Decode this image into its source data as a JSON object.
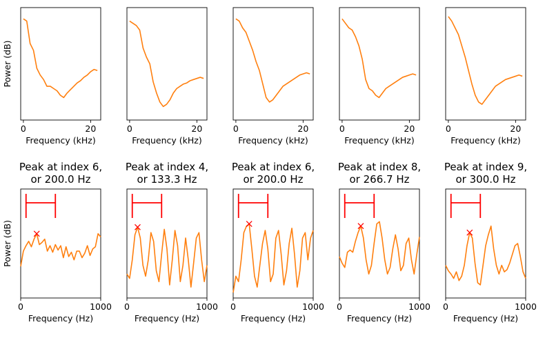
{
  "colors": {
    "line": "#ff7f0e",
    "peak_marker": "#ff0000",
    "bracket": "#ff0000",
    "axes": "#000000",
    "background": "#ffffff"
  },
  "chart_data": [
    {
      "type": "line",
      "row": "top",
      "panels": [
        {
          "title": "",
          "xlabel": "Frequency (kHz)",
          "ylabel": "Power (dB)",
          "xlim": [
            -0.8,
            23
          ],
          "xticks": [
            0,
            20
          ],
          "yticks": [],
          "series": {
            "x": [
              0,
              1,
              2,
              3,
              4,
              5,
              6,
              7,
              8,
              9,
              10,
              11,
              12,
              13,
              14,
              15,
              16,
              17,
              18,
              19,
              20,
              21,
              22
            ],
            "y": [
              0.9,
              0.88,
              0.68,
              0.62,
              0.46,
              0.4,
              0.36,
              0.3,
              0.3,
              0.28,
              0.26,
              0.22,
              0.2,
              0.24,
              0.27,
              0.3,
              0.33,
              0.35,
              0.38,
              0.4,
              0.43,
              0.45,
              0.44
            ]
          }
        },
        {
          "title": "",
          "xlabel": "Frequency (kHz)",
          "ylabel": "",
          "xlim": [
            -0.8,
            23
          ],
          "xticks": [
            0,
            20
          ],
          "yticks": [],
          "series": {
            "x": [
              0,
              1,
              2,
              3,
              4,
              5,
              6,
              7,
              8,
              9,
              10,
              11,
              12,
              13,
              14,
              15,
              16,
              17,
              18,
              19,
              20,
              21,
              22
            ],
            "y": [
              0.88,
              0.86,
              0.84,
              0.8,
              0.64,
              0.56,
              0.5,
              0.34,
              0.24,
              0.16,
              0.12,
              0.14,
              0.18,
              0.24,
              0.28,
              0.3,
              0.32,
              0.33,
              0.35,
              0.36,
              0.37,
              0.38,
              0.37
            ]
          }
        },
        {
          "title": "",
          "xlabel": "Frequency (kHz)",
          "ylabel": "",
          "xlim": [
            -0.8,
            23
          ],
          "xticks": [
            0,
            20
          ],
          "yticks": [],
          "series": {
            "x": [
              0,
              1,
              2,
              3,
              4,
              5,
              6,
              7,
              8,
              9,
              10,
              11,
              12,
              13,
              14,
              15,
              16,
              17,
              18,
              19,
              20,
              21,
              22
            ],
            "y": [
              0.9,
              0.88,
              0.82,
              0.78,
              0.7,
              0.62,
              0.52,
              0.44,
              0.32,
              0.2,
              0.16,
              0.18,
              0.22,
              0.26,
              0.3,
              0.32,
              0.34,
              0.36,
              0.38,
              0.4,
              0.41,
              0.42,
              0.41
            ]
          }
        },
        {
          "title": "",
          "xlabel": "Frequency (kHz)",
          "ylabel": "",
          "xlim": [
            -0.8,
            23
          ],
          "xticks": [
            0,
            20
          ],
          "yticks": [],
          "series": {
            "x": [
              0,
              1,
              2,
              3,
              4,
              5,
              6,
              7,
              8,
              9,
              10,
              11,
              12,
              13,
              14,
              15,
              16,
              17,
              18,
              19,
              20,
              21,
              22
            ],
            "y": [
              0.9,
              0.86,
              0.82,
              0.8,
              0.74,
              0.66,
              0.54,
              0.36,
              0.28,
              0.26,
              0.22,
              0.2,
              0.24,
              0.28,
              0.3,
              0.32,
              0.34,
              0.36,
              0.38,
              0.39,
              0.4,
              0.41,
              0.4
            ]
          }
        },
        {
          "title": "",
          "xlabel": "Frequency (kHz)",
          "ylabel": "",
          "xlim": [
            -0.8,
            23
          ],
          "xticks": [
            0,
            20
          ],
          "yticks": [],
          "series": {
            "x": [
              0,
              1,
              2,
              3,
              4,
              5,
              6,
              7,
              8,
              9,
              10,
              11,
              12,
              13,
              14,
              15,
              16,
              17,
              18,
              19,
              20,
              21,
              22
            ],
            "y": [
              0.92,
              0.88,
              0.82,
              0.76,
              0.66,
              0.56,
              0.44,
              0.32,
              0.22,
              0.16,
              0.14,
              0.18,
              0.22,
              0.26,
              0.3,
              0.32,
              0.34,
              0.36,
              0.37,
              0.38,
              0.39,
              0.4,
              0.39
            ]
          }
        }
      ]
    },
    {
      "type": "line",
      "row": "bottom",
      "panels": [
        {
          "title_line1": "Peak at index 6,",
          "title_line2": "or 200.0 Hz",
          "xlabel": "Frequency (Hz)",
          "ylabel": "Power (dB)",
          "xlim": [
            0,
            1000
          ],
          "xticks": [
            0,
            1000
          ],
          "yticks": [],
          "peak": {
            "x": 200,
            "y": 0.59
          },
          "bracket": [
            66.7,
            433.3
          ],
          "series": {
            "x": [
              0,
              33.3,
              66.7,
              100,
              133.3,
              166.7,
              200,
              233.3,
              266.7,
              300,
              333.3,
              366.7,
              400,
              433.3,
              466.7,
              500,
              533.3,
              566.7,
              600,
              633.3,
              666.7,
              700,
              733.3,
              766.7,
              800,
              833.3,
              866.7,
              900,
              933.3,
              966.7,
              1000
            ],
            "y": [
              0.29,
              0.43,
              0.48,
              0.52,
              0.47,
              0.54,
              0.59,
              0.49,
              0.51,
              0.54,
              0.43,
              0.48,
              0.42,
              0.49,
              0.44,
              0.48,
              0.37,
              0.47,
              0.38,
              0.42,
              0.35,
              0.43,
              0.43,
              0.37,
              0.41,
              0.48,
              0.39,
              0.45,
              0.47,
              0.59,
              0.56
            ]
          }
        },
        {
          "title_line1": "Peak at index 4,",
          "title_line2": "or 133.3 Hz",
          "xlabel": "Frequency (Hz)",
          "ylabel": "",
          "xlim": [
            0,
            1000
          ],
          "xticks": [
            0,
            1000
          ],
          "yticks": [],
          "peak": {
            "x": 133.3,
            "y": 0.65
          },
          "bracket": [
            66.7,
            433.3
          ],
          "series": {
            "x": [
              0,
              33.3,
              66.7,
              100,
              133.3,
              166.7,
              200,
              233.3,
              266.7,
              300,
              333.3,
              366.7,
              400,
              433.3,
              466.7,
              500,
              533.3,
              566.7,
              600,
              633.3,
              666.7,
              700,
              733.3,
              766.7,
              800,
              833.3,
              866.7,
              900,
              933.3,
              966.7,
              1000
            ],
            "y": [
              0.22,
              0.18,
              0.35,
              0.58,
              0.65,
              0.55,
              0.3,
              0.2,
              0.35,
              0.6,
              0.52,
              0.25,
              0.15,
              0.4,
              0.63,
              0.45,
              0.12,
              0.35,
              0.62,
              0.48,
              0.15,
              0.3,
              0.55,
              0.35,
              0.1,
              0.32,
              0.55,
              0.6,
              0.35,
              0.15,
              0.3
            ]
          }
        },
        {
          "title_line1": "Peak at index 6,",
          "title_line2": "or 200.0 Hz",
          "xlabel": "Frequency (Hz)",
          "ylabel": "",
          "xlim": [
            0,
            1000
          ],
          "xticks": [
            0,
            1000
          ],
          "yticks": [],
          "peak": {
            "x": 200,
            "y": 0.68
          },
          "bracket": [
            66.7,
            433.3
          ],
          "series": {
            "x": [
              0,
              33.3,
              66.7,
              100,
              133.3,
              166.7,
              200,
              233.3,
              266.7,
              300,
              333.3,
              366.7,
              400,
              433.3,
              466.7,
              500,
              533.3,
              566.7,
              600,
              633.3,
              666.7,
              700,
              733.3,
              766.7,
              800,
              833.3,
              866.7,
              900,
              933.3,
              966.7,
              1000
            ],
            "y": [
              0.05,
              0.2,
              0.15,
              0.35,
              0.6,
              0.66,
              0.68,
              0.45,
              0.2,
              0.1,
              0.3,
              0.5,
              0.62,
              0.45,
              0.15,
              0.22,
              0.55,
              0.62,
              0.4,
              0.12,
              0.25,
              0.5,
              0.64,
              0.4,
              0.1,
              0.25,
              0.55,
              0.6,
              0.35,
              0.55,
              0.62
            ]
          }
        },
        {
          "title_line1": "Peak at index 8,",
          "title_line2": "or 266.7 Hz",
          "xlabel": "Frequency (Hz)",
          "ylabel": "",
          "xlim": [
            0,
            1000
          ],
          "xticks": [
            0,
            1000
          ],
          "yticks": [],
          "peak": {
            "x": 266.7,
            "y": 0.66
          },
          "bracket": [
            66.7,
            433.3
          ],
          "series": {
            "x": [
              0,
              33.3,
              66.7,
              100,
              133.3,
              166.7,
              200,
              233.3,
              266.7,
              300,
              333.3,
              366.7,
              400,
              433.3,
              466.7,
              500,
              533.3,
              566.7,
              600,
              633.3,
              666.7,
              700,
              733.3,
              766.7,
              800,
              833.3,
              866.7,
              900,
              933.3,
              966.7,
              1000
            ],
            "y": [
              0.38,
              0.32,
              0.28,
              0.42,
              0.44,
              0.42,
              0.52,
              0.6,
              0.66,
              0.55,
              0.35,
              0.22,
              0.3,
              0.5,
              0.68,
              0.7,
              0.55,
              0.35,
              0.22,
              0.28,
              0.45,
              0.58,
              0.45,
              0.25,
              0.3,
              0.5,
              0.55,
              0.35,
              0.22,
              0.4,
              0.56
            ]
          }
        },
        {
          "title_line1": "Peak at index 9,",
          "title_line2": "or 300.0 Hz",
          "xlabel": "Frequency (Hz)",
          "ylabel": "",
          "xlim": [
            0,
            1000
          ],
          "xticks": [
            0,
            1000
          ],
          "yticks": [],
          "peak": {
            "x": 300,
            "y": 0.6
          },
          "bracket": [
            66.7,
            433.3
          ],
          "series": {
            "x": [
              0,
              33.3,
              66.7,
              100,
              133.3,
              166.7,
              200,
              233.3,
              266.7,
              300,
              333.3,
              366.7,
              400,
              433.3,
              466.7,
              500,
              533.3,
              566.7,
              600,
              633.3,
              666.7,
              700,
              733.3,
              766.7,
              800,
              833.3,
              866.7,
              900,
              933.3,
              966.7,
              1000
            ],
            "y": [
              0.3,
              0.25,
              0.22,
              0.18,
              0.24,
              0.16,
              0.2,
              0.3,
              0.48,
              0.6,
              0.55,
              0.32,
              0.14,
              0.12,
              0.3,
              0.48,
              0.58,
              0.66,
              0.45,
              0.3,
              0.22,
              0.3,
              0.24,
              0.26,
              0.32,
              0.4,
              0.48,
              0.5,
              0.38,
              0.24,
              0.18
            ]
          }
        }
      ]
    }
  ]
}
